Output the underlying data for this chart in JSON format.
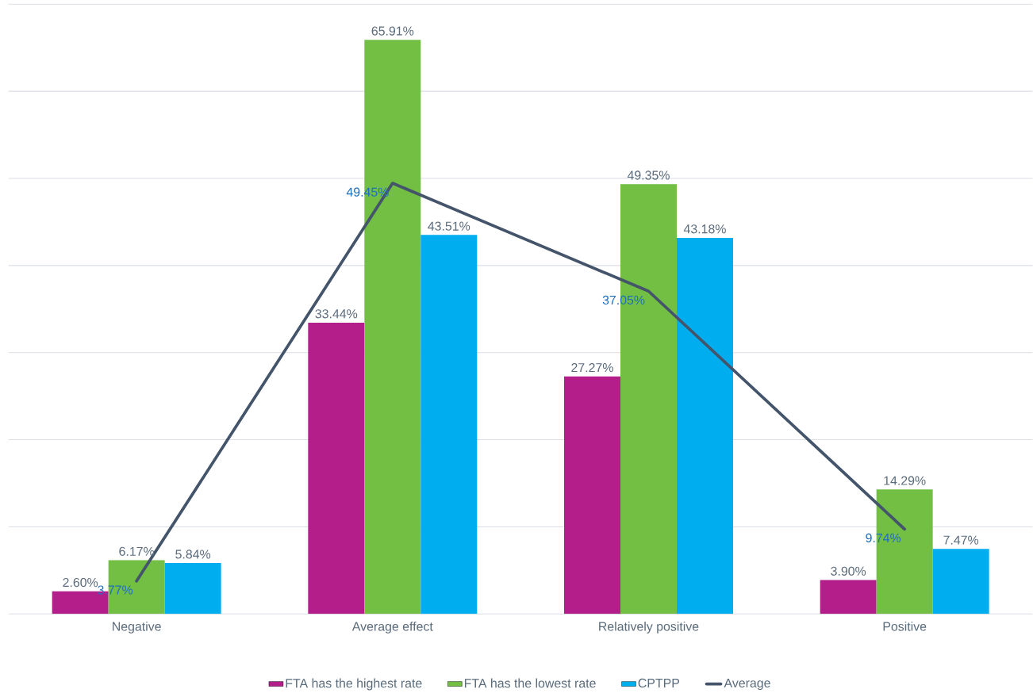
{
  "chart_data": {
    "type": "bar",
    "categories": [
      "Negative",
      "Average effect",
      "Relatively positive",
      "Positive"
    ],
    "series": [
      {
        "name": "FTA has the highest rate",
        "color": "#b31e8a",
        "values": [
          2.6,
          33.44,
          27.27,
          3.9
        ],
        "value_labels": [
          "2.60%",
          "33.44%",
          "27.27%",
          "3.90%"
        ]
      },
      {
        "name": "FTA has the lowest rate",
        "color": "#72bf44",
        "values": [
          6.17,
          65.91,
          49.35,
          14.29
        ],
        "value_labels": [
          "6.17%",
          "65.91%",
          "49.35%",
          "14.29%"
        ]
      },
      {
        "name": "CPTPP",
        "color": "#00adee",
        "values": [
          5.84,
          43.51,
          43.18,
          7.47
        ],
        "value_labels": [
          "5.84%",
          "43.51%",
          "43.18%",
          "7.47%"
        ]
      },
      {
        "name": "Average",
        "type": "line",
        "color": "#44546a",
        "values": [
          3.77,
          49.45,
          37.05,
          9.74
        ],
        "value_labels": [
          "3.77%",
          "49.45%",
          "37.05%",
          "9.74%"
        ]
      }
    ],
    "ylim": [
      0,
      70
    ],
    "yticks": [
      {
        "value": 0,
        "label": null
      },
      {
        "value": 10,
        "label": null
      },
      {
        "value": 20,
        "label": null
      },
      {
        "value": 30,
        "label": null
      },
      {
        "value": 40,
        "label": null
      },
      {
        "value": 50,
        "label": null
      },
      {
        "value": 60,
        "label": null
      },
      {
        "value": 70,
        "label": null
      }
    ],
    "grid": "y",
    "legend": "bottom",
    "marker": "none",
    "line_style": "solid"
  }
}
